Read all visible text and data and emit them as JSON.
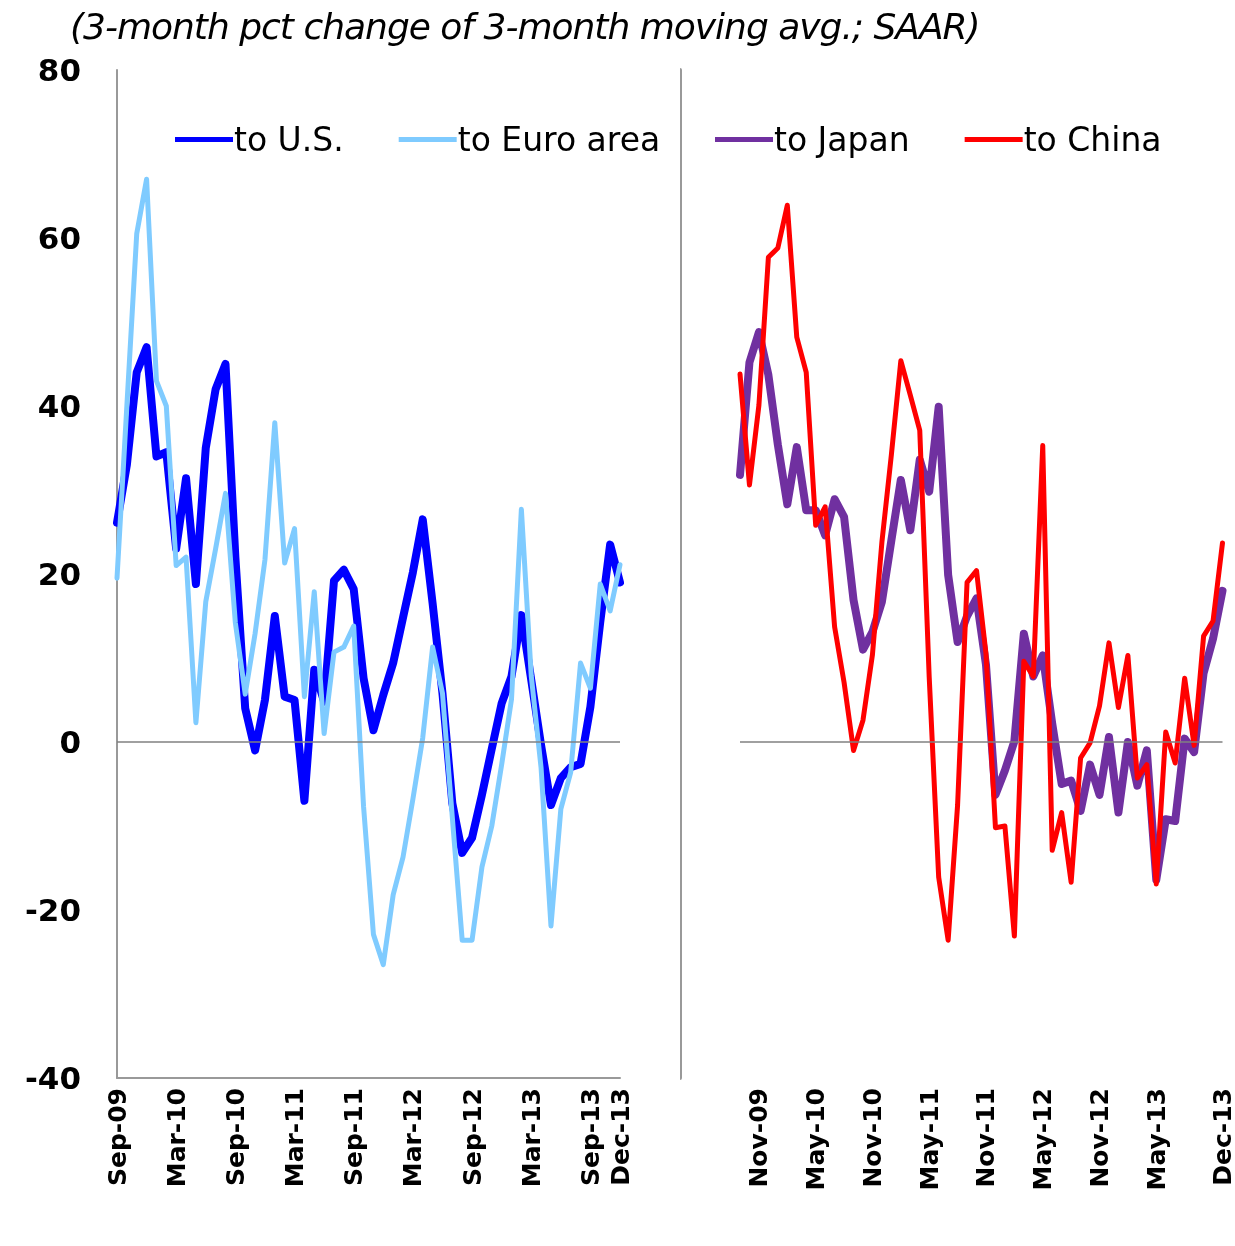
{
  "chart_data": [
    {
      "type": "line",
      "title": "(3-month pct change of 3-month moving avg.; SAAR)",
      "categories": [
        "Sep-09",
        null,
        null,
        null,
        null,
        null,
        "Mar-10",
        null,
        null,
        null,
        null,
        null,
        "Sep-10",
        null,
        null,
        null,
        null,
        null,
        "Mar-11",
        null,
        null,
        null,
        null,
        null,
        "Sep-11",
        null,
        null,
        null,
        null,
        null,
        "Mar-12",
        null,
        null,
        null,
        null,
        null,
        "Sep-12",
        null,
        null,
        null,
        null,
        null,
        "Mar-13",
        null,
        null,
        null,
        null,
        null,
        "Sep-13",
        null,
        null,
        "Dec-13"
      ],
      "series": [
        {
          "name": "to U.S.",
          "color": "#0000ff",
          "values": [
            26.1,
            33,
            44,
            47,
            34,
            34.5,
            23,
            31.4,
            18.8,
            35,
            42,
            45,
            22,
            4,
            -1,
            5,
            15,
            5.4,
            5,
            -7,
            8.6,
            4.8,
            19.2,
            20.5,
            18.2,
            7.6,
            1.4,
            5.6,
            9.4,
            14.8,
            20.2,
            26.5,
            16.5,
            5.8,
            -7.3,
            -13.2,
            -11.4,
            -6.3,
            -0.8,
            4.6,
            7.8,
            15.1,
            7.4,
            -0.4,
            -7.5,
            -4.3,
            -3,
            -2.6,
            4.2,
            14.3,
            23.5,
            19
          ]
        },
        {
          "name": "to Euro area",
          "color": "#7fcbff",
          "values": [
            19.5,
            40,
            60.5,
            67,
            43,
            40,
            21,
            22,
            2.3,
            16.7,
            23,
            29.6,
            14.2,
            5.7,
            12.9,
            21.7,
            38,
            21.3,
            25.4,
            5.4,
            17.9,
            1,
            10.7,
            11.3,
            13.8,
            -7.7,
            -22.9,
            -26.5,
            -18.2,
            -13.7,
            -6.8,
            0.5,
            11.3,
            5.8,
            -9,
            -23.6,
            -23.6,
            -14.9,
            -10,
            -2.7,
            5.1,
            27.7,
            7.9,
            -3.1,
            -21.9,
            -8,
            -3.6,
            9.4,
            6.4,
            18.8,
            15.6,
            21.1
          ]
        }
      ],
      "ylim": [
        -40,
        80
      ],
      "yticks": [
        -40,
        -20,
        0,
        20,
        40,
        60,
        80
      ],
      "legend": "top",
      "marker": "none",
      "ref_lines": [
        {
          "axis": "y",
          "value": 0
        }
      ]
    },
    {
      "type": "line",
      "categories": [
        null,
        null,
        "Nov-09",
        null,
        null,
        null,
        null,
        null,
        "May-10",
        null,
        null,
        null,
        null,
        null,
        "Nov-10",
        null,
        null,
        null,
        null,
        null,
        "May-11",
        null,
        null,
        null,
        null,
        null,
        "Nov-11",
        null,
        null,
        null,
        null,
        null,
        "May-12",
        null,
        null,
        null,
        null,
        null,
        "Nov-12",
        null,
        null,
        null,
        null,
        null,
        "May-13",
        null,
        null,
        null,
        null,
        null,
        null,
        "Dec-13"
      ],
      "series": [
        {
          "name": "to Japan",
          "color": "#7030a0",
          "values": [
            31.8,
            45.2,
            48.8,
            43.7,
            35.4,
            28.3,
            35.1,
            27.6,
            27.6,
            24.6,
            28.9,
            26.8,
            16.9,
            11,
            13.1,
            16.7,
            24,
            31.2,
            25.2,
            33.6,
            29.8,
            39.9,
            19.9,
            11.9,
            15,
            17.1,
            9.2,
            -6.3,
            -3.4,
            0.1,
            12.9,
            7.8,
            10.3,
            2.2,
            -5,
            -4.6,
            -8.2,
            -2.7,
            -6.3,
            0.6,
            -8.4,
            0,
            -5.2,
            -1,
            -16.4,
            -9.2,
            -9.4,
            0.4,
            -1.2,
            8.2,
            12.3,
            18
          ]
        },
        {
          "name": "to China",
          "color": "#ff0000",
          "values": [
            43.8,
            30.6,
            40.1,
            57.7,
            58.8,
            63.9,
            48.2,
            44,
            25.8,
            28,
            13.7,
            7.1,
            -1,
            2.6,
            10.4,
            23.8,
            34.2,
            45.4,
            41.3,
            37.1,
            7.7,
            -16.1,
            -23.6,
            -7.5,
            19,
            20.4,
            10.5,
            -10.2,
            -10,
            -23.1,
            9.6,
            7.8,
            35.3,
            -12.9,
            -8.4,
            -16.7,
            -1.9,
            -0.1,
            4.3,
            11.8,
            4.1,
            10.3,
            -4.3,
            -2.7,
            -16.9,
            1.2,
            -2.5,
            7.6,
            -0.4,
            12.6,
            14.4,
            23.7
          ]
        }
      ],
      "ylim": [
        -40,
        80
      ],
      "yticks": [
        -40,
        -20,
        0,
        20,
        40,
        60,
        80
      ],
      "tick_labels": "x",
      "legend": "top",
      "marker": "none",
      "ref_lines": [
        {
          "axis": "y",
          "value": 0
        }
      ]
    }
  ]
}
